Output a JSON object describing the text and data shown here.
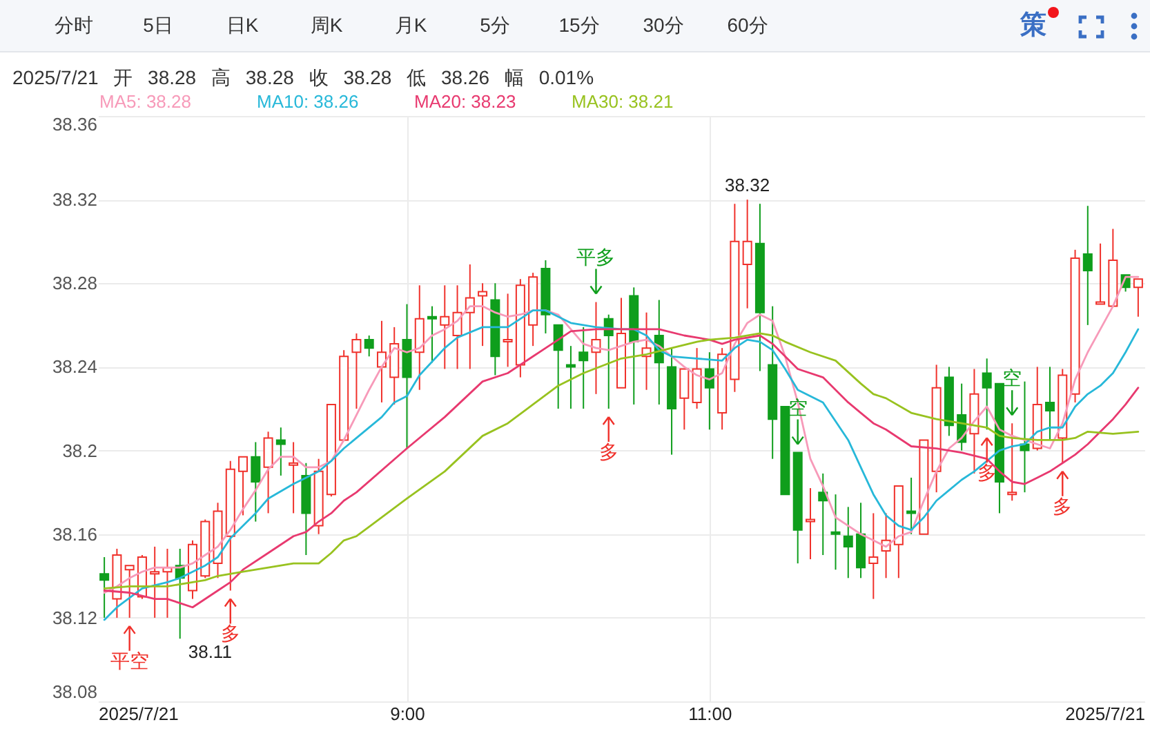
{
  "chart_data": {
    "type": "candlestick",
    "subtitle": "2025/7/21 开 38.28 高 38.28 收 38.28 低 38.26 幅 0.01%",
    "x": [
      "2025-07-21T07:00",
      "2025-07-21T07:05",
      "2025-07-21T07:10",
      "2025-07-21T07:15",
      "2025-07-21T07:20",
      "2025-07-21T07:25",
      "2025-07-21T07:30",
      "2025-07-21T07:35",
      "2025-07-21T07:40",
      "2025-07-21T07:45",
      "2025-07-21T07:50",
      "2025-07-21T07:55",
      "2025-07-21T08:00",
      "2025-07-21T08:05",
      "2025-07-21T08:10",
      "2025-07-21T08:15",
      "2025-07-21T08:20",
      "2025-07-21T08:25",
      "2025-07-21T08:30",
      "2025-07-21T08:35",
      "2025-07-21T08:40",
      "2025-07-21T08:45",
      "2025-07-21T08:50",
      "2025-07-21T08:55",
      "2025-07-21T09:00",
      "2025-07-21T09:05",
      "2025-07-21T09:10",
      "2025-07-21T09:15",
      "2025-07-21T09:20",
      "2025-07-21T09:25",
      "2025-07-21T09:30",
      "2025-07-21T09:35",
      "2025-07-21T09:40",
      "2025-07-21T09:45",
      "2025-07-21T09:50",
      "2025-07-21T09:55",
      "2025-07-21T10:00",
      "2025-07-21T10:05",
      "2025-07-21T10:10",
      "2025-07-21T10:15",
      "2025-07-21T10:20",
      "2025-07-21T10:25",
      "2025-07-21T10:30",
      "2025-07-21T10:35",
      "2025-07-21T10:40",
      "2025-07-21T10:45",
      "2025-07-21T10:50",
      "2025-07-21T10:55",
      "2025-07-21T11:00",
      "2025-07-21T11:05",
      "2025-07-21T11:10",
      "2025-07-21T11:15",
      "2025-07-21T11:20",
      "2025-07-21T11:25",
      "2025-07-21T11:30",
      "2025-07-21T11:35",
      "2025-07-21T11:40",
      "2025-07-21T11:45",
      "2025-07-21T11:50",
      "2025-07-21T11:55",
      "2025-07-21T12:00",
      "2025-07-21T12:05",
      "2025-07-21T12:10",
      "2025-07-21T12:15",
      "2025-07-21T12:20",
      "2025-07-21T12:25",
      "2025-07-21T12:30",
      "2025-07-21T12:35",
      "2025-07-21T12:40",
      "2025-07-21T12:45",
      "2025-07-21T12:50",
      "2025-07-21T12:55",
      "2025-07-21T13:00",
      "2025-07-21T13:05",
      "2025-07-21T13:10",
      "2025-07-21T13:15",
      "2025-07-21T13:20",
      "2025-07-21T13:25",
      "2025-07-21T13:30",
      "2025-07-21T13:35",
      "2025-07-21T13:40",
      "2025-07-21T13:45",
      "2025-07-21T13:50"
    ],
    "ohlc": [
      [
        38.141,
        38.149,
        38.12,
        38.138
      ],
      [
        38.129,
        38.153,
        38.12,
        38.15
      ],
      [
        38.143,
        38.145,
        38.12,
        38.145
      ],
      [
        38.13,
        38.15,
        38.129,
        38.149
      ],
      [
        38.141,
        38.154,
        38.12,
        38.142
      ],
      [
        38.142,
        38.153,
        38.12,
        38.144
      ],
      [
        38.145,
        38.153,
        38.11,
        38.139
      ],
      [
        38.133,
        38.157,
        38.129,
        38.155
      ],
      [
        38.14,
        38.167,
        38.139,
        38.166
      ],
      [
        38.146,
        38.175,
        38.139,
        38.171
      ],
      [
        38.159,
        38.195,
        38.133,
        38.191
      ],
      [
        38.19,
        38.197,
        38.169,
        38.197
      ],
      [
        38.197,
        38.204,
        38.166,
        38.185
      ],
      [
        38.192,
        38.209,
        38.17,
        38.206
      ],
      [
        38.205,
        38.211,
        38.188,
        38.203
      ],
      [
        38.193,
        38.204,
        38.17,
        38.194
      ],
      [
        38.188,
        38.194,
        38.15,
        38.17
      ],
      [
        38.164,
        38.196,
        38.16,
        38.19
      ],
      [
        38.179,
        38.222,
        38.178,
        38.222
      ],
      [
        38.205,
        38.248,
        38.205,
        38.245
      ],
      [
        38.247,
        38.256,
        38.22,
        38.253
      ],
      [
        38.253,
        38.255,
        38.245,
        38.249
      ],
      [
        38.24,
        38.262,
        38.223,
        38.247
      ],
      [
        38.235,
        38.259,
        38.222,
        38.251
      ],
      [
        38.253,
        38.27,
        38.201,
        38.235
      ],
      [
        38.247,
        38.279,
        38.229,
        38.263
      ],
      [
        38.264,
        38.269,
        38.242,
        38.263
      ],
      [
        38.26,
        38.279,
        38.239,
        38.264
      ],
      [
        38.255,
        38.279,
        38.239,
        38.266
      ],
      [
        38.266,
        38.289,
        38.239,
        38.273
      ],
      [
        38.274,
        38.28,
        38.25,
        38.276
      ],
      [
        38.272,
        38.28,
        38.236,
        38.245
      ],
      [
        38.252,
        38.275,
        38.24,
        38.253
      ],
      [
        38.241,
        38.282,
        38.235,
        38.279
      ],
      [
        38.26,
        38.285,
        38.25,
        38.283
      ],
      [
        38.287,
        38.291,
        38.256,
        38.265
      ],
      [
        38.26,
        38.26,
        38.22,
        38.248
      ],
      [
        38.241,
        38.25,
        38.22,
        38.24
      ],
      [
        38.247,
        38.259,
        38.22,
        38.243
      ],
      [
        38.247,
        38.271,
        38.227,
        38.253
      ],
      [
        38.263,
        38.265,
        38.22,
        38.255
      ],
      [
        38.23,
        38.273,
        38.23,
        38.256
      ],
      [
        38.274,
        38.278,
        38.222,
        38.252
      ],
      [
        38.245,
        38.266,
        38.229,
        38.249
      ],
      [
        38.255,
        38.272,
        38.222,
        38.242
      ],
      [
        38.24,
        38.249,
        38.198,
        38.22
      ],
      [
        38.225,
        38.239,
        38.21,
        38.239
      ],
      [
        38.223,
        38.249,
        38.22,
        38.239
      ],
      [
        38.239,
        38.247,
        38.21,
        38.23
      ],
      [
        38.218,
        38.249,
        38.21,
        38.246
      ],
      [
        38.234,
        38.318,
        38.228,
        38.3
      ],
      [
        38.289,
        38.32,
        38.268,
        38.3
      ],
      [
        38.299,
        38.318,
        38.238,
        38.266
      ],
      [
        38.241,
        38.269,
        38.196,
        38.215
      ],
      [
        38.221,
        38.221,
        38.179,
        38.179
      ],
      [
        38.199,
        38.199,
        38.146,
        38.162
      ],
      [
        38.166,
        38.182,
        38.148,
        38.167
      ],
      [
        38.18,
        38.189,
        38.15,
        38.176
      ],
      [
        38.161,
        38.179,
        38.143,
        38.16
      ],
      [
        38.159,
        38.173,
        38.139,
        38.154
      ],
      [
        38.16,
        38.175,
        38.139,
        38.144
      ],
      [
        38.146,
        38.17,
        38.129,
        38.149
      ],
      [
        38.152,
        38.17,
        38.139,
        38.157
      ],
      [
        38.155,
        38.183,
        38.139,
        38.183
      ],
      [
        38.171,
        38.187,
        38.16,
        38.17
      ],
      [
        38.16,
        38.205,
        38.16,
        38.205
      ],
      [
        38.19,
        38.241,
        38.18,
        38.23
      ],
      [
        38.235,
        38.24,
        38.207,
        38.212
      ],
      [
        38.217,
        38.232,
        38.2,
        38.204
      ],
      [
        38.208,
        38.239,
        38.189,
        38.227
      ],
      [
        38.237,
        38.244,
        38.21,
        38.23
      ],
      [
        38.232,
        38.232,
        38.17,
        38.185
      ],
      [
        38.179,
        38.213,
        38.176,
        38.18
      ],
      [
        38.203,
        38.233,
        38.18,
        38.2
      ],
      [
        38.201,
        38.24,
        38.2,
        38.222
      ],
      [
        38.223,
        38.24,
        38.205,
        38.219
      ],
      [
        38.206,
        38.239,
        38.194,
        38.236
      ],
      [
        38.227,
        38.296,
        38.223,
        38.292
      ],
      [
        38.294,
        38.317,
        38.26,
        38.286
      ],
      [
        38.27,
        38.299,
        38.27,
        38.271
      ],
      [
        38.269,
        38.306,
        38.269,
        38.291
      ],
      [
        38.284,
        38.284,
        38.276,
        38.278
      ],
      [
        38.278,
        38.282,
        38.264,
        38.282
      ]
    ],
    "colors": [
      "#0f9e1c",
      "#f0312b",
      "#f0312b",
      "#f0312b",
      "#f0312b",
      "#f0312b",
      "#0f9e1c",
      "#f0312b",
      "#f0312b",
      "#f0312b",
      "#f0312b",
      "#f0312b",
      "#0f9e1c",
      "#f0312b",
      "#0f9e1c",
      "#f0312b",
      "#0f9e1c",
      "#f0312b",
      "#f0312b",
      "#f0312b",
      "#f0312b",
      "#0f9e1c",
      "#f0312b",
      "#f0312b",
      "#0f9e1c",
      "#f0312b",
      "#0f9e1c",
      "#f0312b",
      "#f0312b",
      "#f0312b",
      "#f0312b",
      "#0f9e1c",
      "#f0312b",
      "#f0312b",
      "#f0312b",
      "#0f9e1c",
      "#0f9e1c",
      "#0f9e1c",
      "#0f9e1c",
      "#f0312b",
      "#0f9e1c",
      "#f0312b",
      "#0f9e1c",
      "#f0312b",
      "#0f9e1c",
      "#0f9e1c",
      "#f0312b",
      "#f0312b",
      "#0f9e1c",
      "#f0312b",
      "#f0312b",
      "#f0312b",
      "#0f9e1c",
      "#0f9e1c",
      "#0f9e1c",
      "#0f9e1c",
      "#f0312b",
      "#0f9e1c",
      "#0f9e1c",
      "#0f9e1c",
      "#0f9e1c",
      "#f0312b",
      "#f0312b",
      "#f0312b",
      "#0f9e1c",
      "#f0312b",
      "#f0312b",
      "#0f9e1c",
      "#0f9e1c",
      "#f0312b",
      "#0f9e1c",
      "#0f9e1c",
      "#f0312b",
      "#0f9e1c",
      "#f0312b",
      "#0f9e1c",
      "#f0312b",
      "#f0312b",
      "#0f9e1c",
      "#f0312b",
      "#f0312b",
      "#0f9e1c",
      "#f0312b"
    ],
    "series": [
      {
        "type": "line",
        "name": "MA5: 38.28",
        "color": "#f79ab9",
        "values": [
          38.132,
          38.135,
          38.139,
          38.142,
          38.144,
          38.144,
          38.144,
          38.146,
          38.15,
          38.154,
          38.162,
          38.172,
          38.181,
          38.191,
          38.197,
          38.197,
          38.192,
          38.192,
          38.195,
          38.205,
          38.217,
          38.229,
          38.24,
          38.249,
          38.247,
          38.249,
          38.255,
          38.258,
          38.262,
          38.269,
          38.269,
          38.266,
          38.264,
          38.265,
          38.267,
          38.267,
          38.265,
          38.258,
          38.251,
          38.249,
          38.248,
          38.25,
          38.252,
          38.253,
          38.25,
          38.245,
          38.24,
          38.236,
          38.234,
          38.237,
          38.251,
          38.261,
          38.265,
          38.262,
          38.245,
          38.223,
          38.196,
          38.183,
          38.168,
          38.164,
          38.16,
          38.157,
          38.154,
          38.159,
          38.161,
          38.176,
          38.19,
          38.201,
          38.206,
          38.214,
          38.221,
          38.21,
          38.207,
          38.205,
          38.203,
          38.201,
          38.213,
          38.234,
          38.247,
          38.258,
          38.269,
          38.283,
          38.283
        ]
      },
      {
        "type": "line",
        "name": "MA10: 38.26",
        "color": "#27b8d9",
        "x": [
          "2025-07-21T07:00",
          "2025-07-21T07:05",
          "2025-07-21T07:15",
          "2025-07-21T07:25",
          "2025-07-21T07:30",
          "2025-07-21T07:40",
          "2025-07-21T07:45",
          "2025-07-21T07:50",
          "2025-07-21T08:00",
          "2025-07-21T08:05",
          "2025-07-21T08:15",
          "2025-07-21T08:20",
          "2025-07-21T08:25",
          "2025-07-21T08:30",
          "2025-07-21T08:35",
          "2025-07-21T08:40",
          "2025-07-21T08:50",
          "2025-07-21T08:55",
          "2025-07-21T09:00",
          "2025-07-21T09:05",
          "2025-07-21T09:15",
          "2025-07-21T09:20",
          "2025-07-21T09:30",
          "2025-07-21T09:40",
          "2025-07-21T09:50",
          "2025-07-21T09:55",
          "2025-07-21T10:05",
          "2025-07-21T10:15",
          "2025-07-21T10:25",
          "2025-07-21T10:30",
          "2025-07-21T10:35",
          "2025-07-21T10:40",
          "2025-07-21T10:45",
          "2025-07-21T10:55",
          "2025-07-21T11:05",
          "2025-07-21T11:10",
          "2025-07-21T11:15",
          "2025-07-21T11:20",
          "2025-07-21T11:25",
          "2025-07-21T11:30",
          "2025-07-21T11:35",
          "2025-07-21T11:45",
          "2025-07-21T11:50",
          "2025-07-21T11:55",
          "2025-07-21T12:00",
          "2025-07-21T12:05",
          "2025-07-21T12:10",
          "2025-07-21T12:15",
          "2025-07-21T12:20",
          "2025-07-21T12:25",
          "2025-07-21T12:30",
          "2025-07-21T12:35",
          "2025-07-21T12:40",
          "2025-07-21T12:45",
          "2025-07-21T12:50",
          "2025-07-21T12:55",
          "2025-07-21T13:00",
          "2025-07-21T13:05",
          "2025-07-21T13:10",
          "2025-07-21T13:15",
          "2025-07-21T13:20",
          "2025-07-21T13:25",
          "2025-07-21T13:30",
          "2025-07-21T13:35",
          "2025-07-21T13:40",
          "2025-07-21T13:45",
          "2025-07-21T13:50"
        ],
        "values": [
          38.119,
          38.125,
          38.134,
          38.137,
          38.139,
          38.145,
          38.149,
          38.158,
          38.17,
          38.177,
          38.184,
          38.187,
          38.19,
          38.195,
          38.201,
          38.206,
          38.216,
          38.223,
          38.226,
          38.236,
          38.249,
          38.254,
          38.259,
          38.259,
          38.267,
          38.267,
          38.261,
          38.259,
          38.258,
          38.258,
          38.255,
          38.248,
          38.245,
          38.244,
          38.243,
          38.249,
          38.253,
          38.252,
          38.248,
          38.239,
          38.229,
          38.223,
          38.214,
          38.205,
          38.192,
          38.179,
          38.169,
          38.164,
          38.162,
          38.168,
          38.176,
          38.181,
          38.186,
          38.19,
          38.195,
          38.2,
          38.202,
          38.203,
          38.209,
          38.211,
          38.211,
          38.221,
          38.227,
          38.231,
          38.237,
          38.247,
          38.258
        ]
      },
      {
        "type": "line",
        "name": "MA20: 38.23",
        "color": "#e8396f",
        "x": [
          "2025-07-21T07:00",
          "2025-07-21T07:10",
          "2025-07-21T07:20",
          "2025-07-21T07:25",
          "2025-07-21T07:30",
          "2025-07-21T07:35",
          "2025-07-21T07:45",
          "2025-07-21T07:50",
          "2025-07-21T07:55",
          "2025-07-21T08:05",
          "2025-07-21T08:15",
          "2025-07-21T08:20",
          "2025-07-21T08:25",
          "2025-07-21T08:30",
          "2025-07-21T08:35",
          "2025-07-21T08:40",
          "2025-07-21T09:00",
          "2025-07-21T09:15",
          "2025-07-21T09:30",
          "2025-07-21T09:40",
          "2025-07-21T09:50",
          "2025-07-21T10:00",
          "2025-07-21T10:05",
          "2025-07-21T10:15",
          "2025-07-21T10:25",
          "2025-07-21T10:40",
          "2025-07-21T10:50",
          "2025-07-21T11:00",
          "2025-07-21T11:05",
          "2025-07-21T11:10",
          "2025-07-21T11:20",
          "2025-07-21T11:25",
          "2025-07-21T11:30",
          "2025-07-21T11:35",
          "2025-07-21T11:45",
          "2025-07-21T11:50",
          "2025-07-21T11:55",
          "2025-07-21T12:00",
          "2025-07-21T12:05",
          "2025-07-21T12:10",
          "2025-07-21T12:20",
          "2025-07-21T12:30",
          "2025-07-21T12:40",
          "2025-07-21T12:50",
          "2025-07-21T12:55",
          "2025-07-21T13:00",
          "2025-07-21T13:05",
          "2025-07-21T13:10",
          "2025-07-21T13:15",
          "2025-07-21T13:20",
          "2025-07-21T13:25",
          "2025-07-21T13:30",
          "2025-07-21T13:35",
          "2025-07-21T13:40",
          "2025-07-21T13:45",
          "2025-07-21T13:50"
        ],
        "values": [
          38.133,
          38.132,
          38.129,
          38.129,
          38.127,
          38.125,
          38.133,
          38.137,
          38.143,
          38.151,
          38.159,
          38.161,
          38.166,
          38.17,
          38.176,
          38.18,
          38.201,
          38.216,
          38.233,
          38.237,
          38.245,
          38.253,
          38.257,
          38.258,
          38.258,
          38.258,
          38.255,
          38.253,
          38.251,
          38.253,
          38.255,
          38.251,
          38.245,
          38.239,
          38.235,
          38.229,
          38.223,
          38.218,
          38.213,
          38.21,
          38.202,
          38.201,
          38.199,
          38.196,
          38.19,
          38.185,
          38.184,
          38.187,
          38.19,
          38.194,
          38.198,
          38.203,
          38.209,
          38.215,
          38.222,
          38.23
        ]
      },
      {
        "type": "line",
        "name": "MA30: 38.21",
        "color": "#98c21f",
        "x": [
          "2025-07-21T07:00",
          "2025-07-21T07:10",
          "2025-07-21T07:25",
          "2025-07-21T07:35",
          "2025-07-21T07:40",
          "2025-07-21T07:45",
          "2025-07-21T07:55",
          "2025-07-21T08:05",
          "2025-07-21T08:15",
          "2025-07-21T08:25",
          "2025-07-21T08:30",
          "2025-07-21T08:35",
          "2025-07-21T08:40",
          "2025-07-21T09:00",
          "2025-07-21T09:15",
          "2025-07-21T09:30",
          "2025-07-21T09:40",
          "2025-07-21T09:50",
          "2025-07-21T10:00",
          "2025-07-21T10:10",
          "2025-07-21T10:25",
          "2025-07-21T10:35",
          "2025-07-21T10:45",
          "2025-07-21T10:55",
          "2025-07-21T11:00",
          "2025-07-21T11:10",
          "2025-07-21T11:20",
          "2025-07-21T11:25",
          "2025-07-21T11:30",
          "2025-07-21T11:40",
          "2025-07-21T11:50",
          "2025-07-21T12:00",
          "2025-07-21T12:05",
          "2025-07-21T12:10",
          "2025-07-21T12:20",
          "2025-07-21T12:30",
          "2025-07-21T12:40",
          "2025-07-21T12:50",
          "2025-07-21T12:55",
          "2025-07-21T13:00",
          "2025-07-21T13:10",
          "2025-07-21T13:20",
          "2025-07-21T13:25",
          "2025-07-21T13:30",
          "2025-07-21T13:40",
          "2025-07-21T13:50"
        ],
        "values": [
          38.134,
          38.135,
          38.135,
          38.137,
          38.138,
          38.14,
          38.142,
          38.144,
          38.146,
          38.146,
          38.151,
          38.157,
          38.159,
          38.177,
          38.19,
          38.207,
          38.213,
          38.222,
          38.231,
          38.237,
          38.244,
          38.246,
          38.249,
          38.252,
          38.253,
          38.254,
          38.256,
          38.255,
          38.252,
          38.247,
          38.243,
          38.232,
          38.227,
          38.225,
          38.218,
          38.215,
          38.213,
          38.211,
          38.207,
          38.206,
          38.205,
          38.205,
          38.206,
          38.209,
          38.208,
          38.209
        ]
      }
    ],
    "xlim": [
      "2025-07-21T06:57:30",
      "2025-07-21T13:52:30"
    ],
    "xticks": [
      {
        "value": "2025-07-21T06:57:30",
        "label": "2025/7/21"
      },
      {
        "value": "2025-07-21T09:00",
        "label": "9:00"
      },
      {
        "value": "2025-07-21T11:00",
        "label": "11:00"
      },
      {
        "value": "2025-07-21T13:52:30",
        "label": "2025/7/21"
      }
    ],
    "ylim": [
      38.08,
      38.36
    ],
    "yticks": [
      38.08,
      38.12,
      38.16,
      38.2,
      38.24,
      38.28,
      38.32,
      38.36
    ],
    "grid": true,
    "legend": "top left",
    "annotations": [
      "分时",
      "5日",
      "日K",
      "周K",
      "月K",
      "5分",
      "15分",
      "30分",
      "60分",
      "策",
      {
        "text": "平空",
        "x": "2025-07-21T07:10",
        "y": 38.12
      },
      {
        "text": "38.11",
        "x": "2025-07-21T07:30",
        "y": 38.11
      },
      {
        "text": "多",
        "x": "2025-07-21T07:50",
        "y": 38.133
      },
      {
        "text": "平多",
        "x": "2025-07-21T10:15",
        "y": 38.271
      },
      {
        "text": "多",
        "x": "2025-07-21T10:20",
        "y": 38.22
      },
      {
        "text": "38.32",
        "x": "2025-07-21T11:15",
        "y": 38.32
      },
      {
        "text": "空",
        "x": "2025-07-21T11:35",
        "y": 38.199
      },
      {
        "text": "多",
        "x": "2025-07-21T12:50",
        "y": 38.21
      },
      {
        "text": "空",
        "x": "2025-07-21T13:00",
        "y": 38.213
      },
      {
        "text": "多",
        "x": "2025-07-21T13:20",
        "y": 38.194
      }
    ]
  }
}
